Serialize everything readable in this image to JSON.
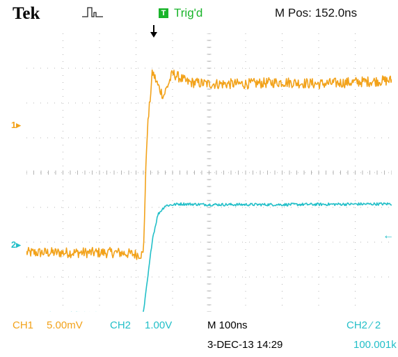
{
  "header": {
    "brand": "Tek",
    "acquisition_icon": "pulse-acquisition-icon",
    "trigger_badge": "T",
    "trigger_status": "Trig'd",
    "horizontal_position": "M Pos: 152.0ns"
  },
  "channels": {
    "ch1": {
      "marker": "1",
      "label": "CH1",
      "scale": "5.00mV",
      "color": "#f2a21a"
    },
    "ch2": {
      "marker": "2",
      "label": "CH2",
      "scale": "1.00V",
      "color": "#22bfc8"
    }
  },
  "footer": {
    "timebase": "M 100ns",
    "trigger_source": "CH2 ⁄ 2",
    "datetime": "3-DEC-13 14:29",
    "trigger_frequency": "100.001k"
  },
  "colors": {
    "background": "#ffffff",
    "grid": "#b4b4b4",
    "trigger": "#19b42a"
  },
  "chart_data": {
    "type": "line",
    "grid": true,
    "divisions": {
      "x": 10,
      "y": 8
    },
    "x_unit": "div",
    "y_unit": "div",
    "xlim": [
      0,
      10
    ],
    "ylim": [
      -4,
      4
    ],
    "series": [
      {
        "name": "CH1",
        "x": [
          0,
          2.5,
          3.0,
          3.2,
          3.3,
          3.45,
          3.6,
          3.75,
          4.0,
          4.4,
          5.0,
          6.0,
          7.0,
          8.0,
          9.0,
          10.0
        ],
        "y": [
          -2.3,
          -2.3,
          -2.35,
          -2.35,
          1.1,
          2.9,
          2.5,
          2.2,
          2.85,
          2.6,
          2.55,
          2.55,
          2.6,
          2.55,
          2.6,
          2.65
        ],
        "noise": 0.15
      },
      {
        "name": "CH2",
        "x": [
          0,
          2.5,
          3.0,
          3.2,
          3.3,
          3.45,
          3.6,
          3.8,
          4.2,
          5.0,
          7.0,
          10.0
        ],
        "y": [
          -4.05,
          -4.05,
          -4.07,
          -4.05,
          -3.2,
          -1.9,
          -1.2,
          -0.95,
          -0.9,
          -0.92,
          -0.92,
          -0.9
        ],
        "noise": 0.04
      }
    ]
  }
}
